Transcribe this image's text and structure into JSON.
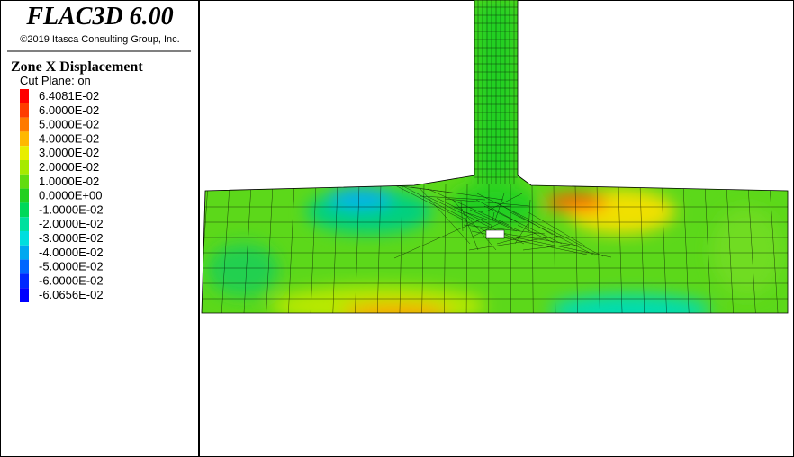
{
  "header": {
    "title": "FLAC3D 6.00",
    "copyright": "©2019 Itasca Consulting Group, Inc."
  },
  "legend": {
    "title": "Zone X Displacement",
    "subtitle": "Cut Plane: on",
    "items": [
      {
        "label": "6.4081E-02",
        "color": "#ff0000"
      },
      {
        "label": "6.0000E-02",
        "color": "#ff3c00"
      },
      {
        "label": "5.0000E-02",
        "color": "#ff7a00"
      },
      {
        "label": "4.0000E-02",
        "color": "#ffb800"
      },
      {
        "label": "3.0000E-02",
        "color": "#e8ee00"
      },
      {
        "label": "2.0000E-02",
        "color": "#a6ea00"
      },
      {
        "label": "1.0000E-02",
        "color": "#62dc10"
      },
      {
        "label": "0.0000E+00",
        "color": "#22d020"
      },
      {
        "label": "-1.0000E-02",
        "color": "#00d85a"
      },
      {
        "label": "-2.0000E-02",
        "color": "#00e09e"
      },
      {
        "label": "-3.0000E-02",
        "color": "#00dede"
      },
      {
        "label": "-4.0000E-02",
        "color": "#00a8f0"
      },
      {
        "label": "-5.0000E-02",
        "color": "#0066ff"
      },
      {
        "label": "-6.0000E-02",
        "color": "#0028ff"
      },
      {
        "label": "-6.0656E-02",
        "color": "#0000ff"
      }
    ]
  }
}
